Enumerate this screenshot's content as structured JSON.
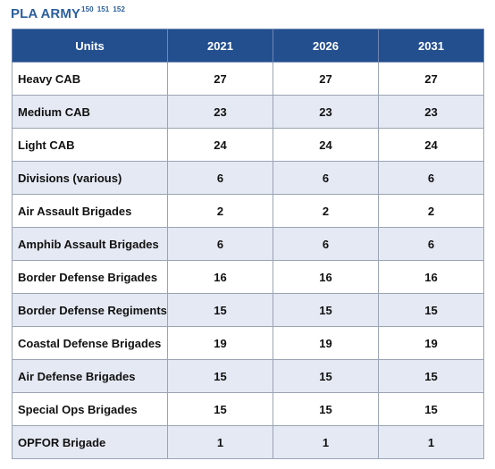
{
  "header": {
    "title": "PLA ARMY",
    "refs": [
      "150",
      "151",
      "152"
    ]
  },
  "table": {
    "columns": [
      "Units",
      "2021",
      "2026",
      "2031"
    ],
    "rows": [
      {
        "unit": "Heavy CAB",
        "y2021": "27",
        "y2026": "27",
        "y2031": "27"
      },
      {
        "unit": "Medium CAB",
        "y2021": "23",
        "y2026": "23",
        "y2031": "23"
      },
      {
        "unit": "Light CAB",
        "y2021": "24",
        "y2026": "24",
        "y2031": "24"
      },
      {
        "unit": "Divisions (various)",
        "y2021": "6",
        "y2026": "6",
        "y2031": "6"
      },
      {
        "unit": "Air Assault Brigades",
        "y2021": "2",
        "y2026": "2",
        "y2031": "2"
      },
      {
        "unit": "Amphib Assault Brigades",
        "y2021": "6",
        "y2026": "6",
        "y2031": "6"
      },
      {
        "unit": "Border Defense Brigades",
        "y2021": "16",
        "y2026": "16",
        "y2031": "16"
      },
      {
        "unit": "Border Defense Regiments",
        "y2021": "15",
        "y2026": "15",
        "y2031": "15"
      },
      {
        "unit": "Coastal Defense Brigades",
        "y2021": "19",
        "y2026": "19",
        "y2031": "19"
      },
      {
        "unit": "Air Defense Brigades",
        "y2021": "15",
        "y2026": "15",
        "y2031": "15"
      },
      {
        "unit": "Special Ops Brigades",
        "y2021": "15",
        "y2026": "15",
        "y2031": "15"
      },
      {
        "unit": "OPFOR Brigade",
        "y2021": "1",
        "y2026": "1",
        "y2031": "1"
      }
    ]
  },
  "colors": {
    "title": "#2b5f9e",
    "header_bg": "#234f8f",
    "stripe": "#e4e9f3"
  }
}
